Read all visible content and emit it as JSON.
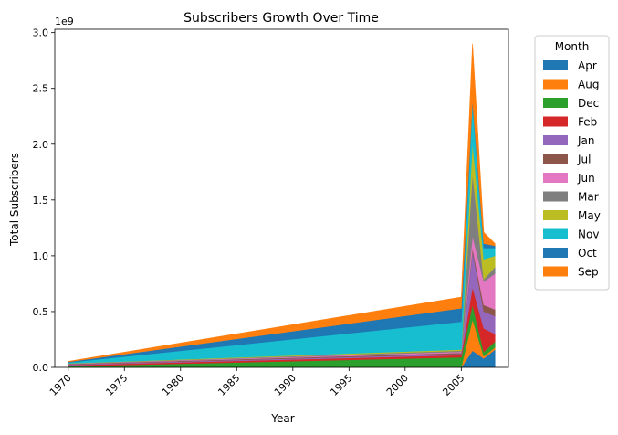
{
  "chart_data": {
    "type": "area",
    "stacked": true,
    "title": "Subscribers Growth Over Time",
    "xlabel": "Year",
    "ylabel": "Total Subscribers",
    "y_scale_label": "1e9",
    "xlim": [
      1968.8,
      2009.2
    ],
    "ylim": [
      0,
      3.03
    ],
    "x_ticks": [
      1970,
      1975,
      1980,
      1985,
      1990,
      1995,
      2000,
      2005
    ],
    "y_ticks": [
      0.0,
      0.5,
      1.0,
      1.5,
      2.0,
      2.5,
      3.0
    ],
    "x_tick_labels": [
      "1970",
      "1975",
      "1980",
      "1985",
      "1990",
      "1995",
      "2000",
      "2005"
    ],
    "y_tick_labels": [
      "0.0",
      "0.5",
      "1.0",
      "1.5",
      "2.0",
      "2.5",
      "3.0"
    ],
    "legend_title": "Month",
    "legend_position": "outside-right",
    "grid": false,
    "x": [
      1970,
      2005,
      2006,
      2007,
      2008
    ],
    "series": [
      {
        "name": "Apr",
        "color": "#1f77b4",
        "values": [
          0,
          0,
          0.15,
          0.08,
          0.16
        ]
      },
      {
        "name": "Aug",
        "color": "#ff7f0e",
        "values": [
          0,
          0,
          0.28,
          0.02,
          0.02
        ]
      },
      {
        "name": "Dec",
        "color": "#2ca02c",
        "values": [
          0.01,
          0.09,
          0.13,
          0.04,
          0.05
        ]
      },
      {
        "name": "Feb",
        "color": "#d62728",
        "values": [
          0.01,
          0.02,
          0.16,
          0.21,
          0.07
        ]
      },
      {
        "name": "Jan",
        "color": "#9467bd",
        "values": [
          0.005,
          0.01,
          0.32,
          0.15,
          0.16
        ]
      },
      {
        "name": "Jul",
        "color": "#8c564b",
        "values": [
          0.005,
          0.01,
          0.03,
          0.06,
          0.06
        ]
      },
      {
        "name": "Jun",
        "color": "#e377c2",
        "values": [
          0.002,
          0.01,
          0.11,
          0.21,
          0.32
        ]
      },
      {
        "name": "Mar",
        "color": "#7f7f7f",
        "values": [
          0.002,
          0.01,
          0.56,
          0.02,
          0.06
        ]
      },
      {
        "name": "May",
        "color": "#bcbd22",
        "values": [
          0.002,
          0.01,
          0.28,
          0.18,
          0.1
        ]
      },
      {
        "name": "Nov",
        "color": "#17becf",
        "values": [
          0.008,
          0.25,
          0.35,
          0.1,
          0.07
        ]
      },
      {
        "name": "Oct",
        "color": "#1f77b4",
        "values": [
          0.006,
          0.12,
          0.03,
          0.04,
          0.02
        ]
      },
      {
        "name": "Sep",
        "color": "#ff7f0e",
        "values": [
          0.004,
          0.1,
          0.5,
          0.1,
          0.02
        ]
      }
    ]
  }
}
